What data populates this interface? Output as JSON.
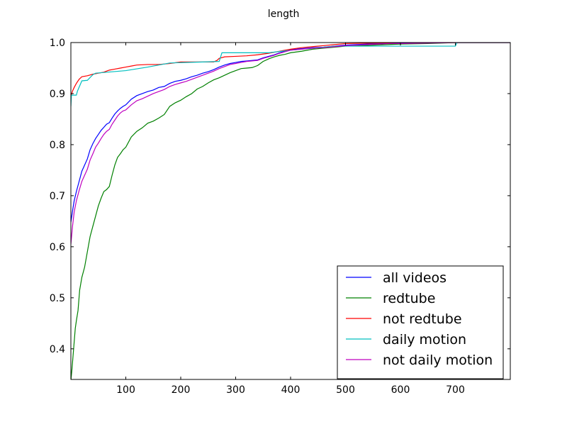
{
  "chart_data": {
    "type": "line",
    "title": "length",
    "xlabel": "",
    "ylabel": "",
    "xlim": [
      0,
      800
    ],
    "ylim": [
      0.34,
      1.0
    ],
    "xticks": [
      100,
      200,
      300,
      400,
      500,
      600,
      700
    ],
    "yticks": [
      0.4,
      0.5,
      0.6,
      0.7,
      0.8,
      0.9,
      1.0
    ],
    "xtick_labels": [
      "100",
      "200",
      "300",
      "400",
      "500",
      "600",
      "700"
    ],
    "ytick_labels": [
      "0.4",
      "0.5",
      "0.6",
      "0.7",
      "0.8",
      "0.9",
      "1.0"
    ],
    "grid": false,
    "legend_position": "lower-right",
    "series": [
      {
        "name": "all videos",
        "color": "#0000ff",
        "x": [
          0,
          3,
          6,
          10,
          15,
          20,
          25,
          30,
          35,
          40,
          45,
          50,
          55,
          60,
          65,
          70,
          75,
          80,
          85,
          90,
          95,
          100,
          110,
          120,
          130,
          140,
          150,
          160,
          170,
          180,
          190,
          200,
          210,
          220,
          230,
          240,
          250,
          260,
          270,
          280,
          290,
          300,
          310,
          320,
          330,
          340,
          350,
          360,
          370,
          380,
          390,
          400,
          420,
          440,
          460,
          480,
          500,
          520,
          540,
          560,
          580,
          600,
          650,
          700,
          800
        ],
        "y": [
          0.648,
          0.67,
          0.69,
          0.708,
          0.728,
          0.748,
          0.76,
          0.772,
          0.79,
          0.802,
          0.812,
          0.82,
          0.828,
          0.834,
          0.84,
          0.843,
          0.852,
          0.86,
          0.866,
          0.871,
          0.875,
          0.878,
          0.889,
          0.896,
          0.9,
          0.904,
          0.907,
          0.912,
          0.914,
          0.92,
          0.924,
          0.926,
          0.929,
          0.933,
          0.936,
          0.94,
          0.943,
          0.947,
          0.952,
          0.956,
          0.959,
          0.961,
          0.963,
          0.964,
          0.965,
          0.966,
          0.97,
          0.973,
          0.976,
          0.98,
          0.983,
          0.986,
          0.988,
          0.99,
          0.991,
          0.993,
          0.995,
          0.996,
          0.997,
          0.998,
          0.999,
          0.999,
          1.0,
          1.0,
          1.0
        ]
      },
      {
        "name": "redtube",
        "color": "#008000",
        "x": [
          0,
          2,
          5,
          8,
          10,
          13,
          16,
          20,
          25,
          30,
          35,
          40,
          45,
          50,
          55,
          60,
          65,
          70,
          75,
          80,
          85,
          90,
          95,
          100,
          105,
          110,
          120,
          130,
          140,
          150,
          160,
          170,
          180,
          190,
          200,
          210,
          220,
          230,
          240,
          250,
          260,
          270,
          280,
          290,
          300,
          310,
          320,
          330,
          340,
          350,
          360,
          370,
          380,
          390,
          400,
          420,
          440,
          460,
          480,
          500,
          550,
          600,
          650,
          700,
          800
        ],
        "y": [
          0.338,
          0.36,
          0.4,
          0.44,
          0.455,
          0.475,
          0.515,
          0.54,
          0.56,
          0.59,
          0.62,
          0.64,
          0.66,
          0.68,
          0.695,
          0.708,
          0.712,
          0.718,
          0.74,
          0.76,
          0.775,
          0.782,
          0.79,
          0.795,
          0.805,
          0.815,
          0.826,
          0.833,
          0.842,
          0.846,
          0.852,
          0.859,
          0.875,
          0.882,
          0.887,
          0.894,
          0.9,
          0.909,
          0.914,
          0.921,
          0.927,
          0.931,
          0.936,
          0.941,
          0.945,
          0.949,
          0.95,
          0.951,
          0.955,
          0.963,
          0.968,
          0.972,
          0.975,
          0.977,
          0.98,
          0.983,
          0.987,
          0.989,
          0.991,
          0.993,
          0.995,
          0.997,
          0.998,
          1.0,
          1.0
        ]
      },
      {
        "name": "not redtube",
        "color": "#ff0000",
        "x": [
          0,
          3,
          6,
          10,
          15,
          20,
          30,
          40,
          50,
          60,
          70,
          80,
          90,
          100,
          110,
          120,
          140,
          160,
          180,
          200,
          220,
          240,
          260,
          266,
          270,
          280,
          300,
          320,
          340,
          360,
          380,
          400,
          420,
          440,
          460,
          480,
          500,
          550,
          600,
          700,
          800
        ],
        "y": [
          0.895,
          0.905,
          0.912,
          0.92,
          0.928,
          0.933,
          0.935,
          0.938,
          0.94,
          0.942,
          0.946,
          0.948,
          0.95,
          0.952,
          0.954,
          0.956,
          0.957,
          0.957,
          0.959,
          0.962,
          0.962,
          0.962,
          0.962,
          0.965,
          0.969,
          0.972,
          0.973,
          0.974,
          0.976,
          0.979,
          0.983,
          0.987,
          0.99,
          0.992,
          0.994,
          0.996,
          0.998,
          0.999,
          1.0,
          1.0,
          1.0
        ]
      },
      {
        "name": "daily motion",
        "color": "#00bfbf",
        "x": [
          0,
          1,
          10,
          12,
          20,
          30,
          40,
          45,
          100,
          140,
          180,
          270,
          275,
          360,
          400,
          480,
          640,
          700,
          703,
          800
        ],
        "y": [
          0.875,
          0.897,
          0.897,
          0.905,
          0.925,
          0.926,
          0.937,
          0.94,
          0.945,
          0.952,
          0.96,
          0.963,
          0.98,
          0.98,
          0.985,
          0.993,
          0.993,
          0.993,
          1.0,
          1.0
        ]
      },
      {
        "name": "not daily motion",
        "color": "#bf00bf",
        "x": [
          0,
          3,
          6,
          10,
          15,
          20,
          25,
          30,
          35,
          40,
          45,
          50,
          55,
          60,
          65,
          70,
          75,
          80,
          85,
          90,
          95,
          100,
          110,
          120,
          130,
          140,
          150,
          160,
          170,
          180,
          190,
          200,
          210,
          220,
          230,
          240,
          250,
          260,
          270,
          280,
          290,
          300,
          310,
          320,
          330,
          340,
          350,
          360,
          370,
          380,
          390,
          400,
          420,
          440,
          460,
          480,
          500,
          520,
          540,
          560,
          580,
          600,
          650,
          700,
          800
        ],
        "y": [
          0.605,
          0.64,
          0.668,
          0.69,
          0.71,
          0.728,
          0.74,
          0.752,
          0.77,
          0.782,
          0.795,
          0.803,
          0.812,
          0.82,
          0.826,
          0.83,
          0.84,
          0.848,
          0.856,
          0.862,
          0.866,
          0.868,
          0.878,
          0.886,
          0.89,
          0.895,
          0.9,
          0.904,
          0.908,
          0.914,
          0.918,
          0.921,
          0.924,
          0.928,
          0.932,
          0.936,
          0.94,
          0.944,
          0.949,
          0.953,
          0.957,
          0.959,
          0.961,
          0.963,
          0.964,
          0.965,
          0.969,
          0.972,
          0.975,
          0.979,
          0.982,
          0.985,
          0.987,
          0.989,
          0.99,
          0.992,
          0.994,
          0.995,
          0.996,
          0.997,
          0.998,
          0.998,
          0.999,
          1.0,
          1.0
        ]
      }
    ]
  }
}
